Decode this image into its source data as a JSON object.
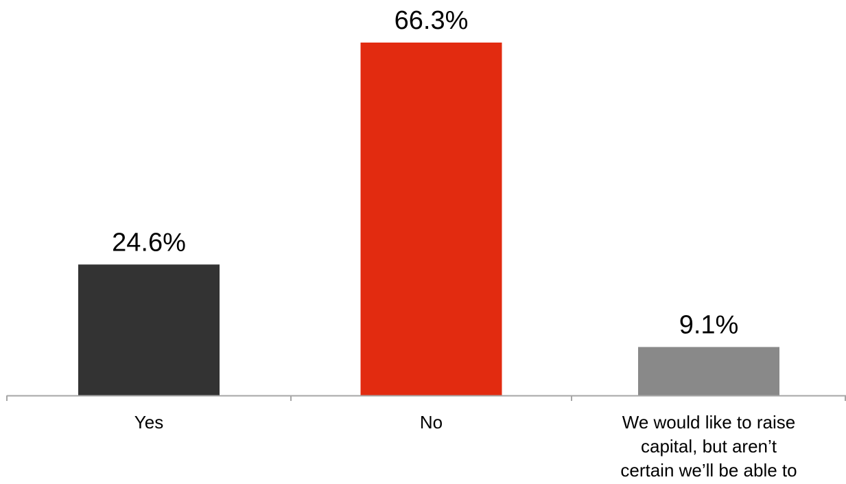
{
  "chart_data": {
    "type": "bar",
    "categories": [
      "Yes",
      "No",
      "We would like to raise capital, but aren’t certain we’ll be able to"
    ],
    "category_lines": [
      [
        "Yes"
      ],
      [
        "No"
      ],
      [
        "We would like to raise",
        "capital, but aren’t",
        "certain we’ll be able to"
      ]
    ],
    "values": [
      24.6,
      66.3,
      9.1
    ],
    "value_labels": [
      "24.6%",
      "66.3%",
      "9.1%"
    ],
    "colors": [
      "#333333",
      "#e22b10",
      "#898989"
    ],
    "axis_color": "#a6a6a6",
    "ylim": [
      0,
      66.3
    ],
    "title": "",
    "xlabel": "",
    "ylabel": "",
    "grid": false,
    "legend": "none"
  }
}
